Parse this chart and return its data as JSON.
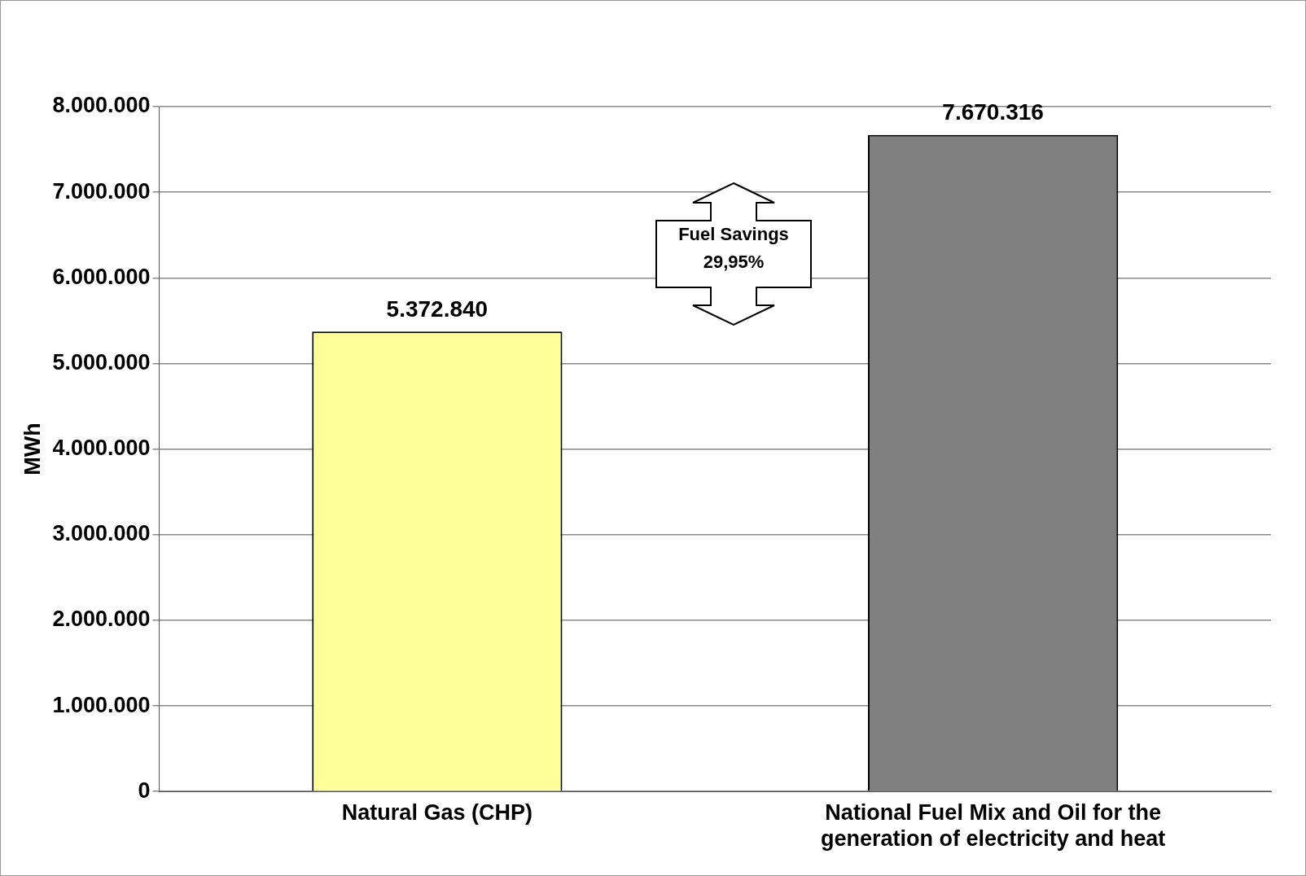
{
  "chart_data": {
    "type": "bar",
    "ylabel": "MWh",
    "categories": [
      "Natural Gas (CHP)",
      "National Fuel Mix and Oil for the generation of electricity and heat"
    ],
    "values": [
      5372840,
      7670316
    ],
    "colors": [
      "#ffff99",
      "#808080"
    ],
    "value_labels": [
      "5.372.840",
      "7.670.316"
    ],
    "ylim": [
      0,
      8000000
    ],
    "yticks": [
      {
        "value": 0,
        "label": "0"
      },
      {
        "value": 1000000,
        "label": "1.000.000"
      },
      {
        "value": 2000000,
        "label": "2.000.000"
      },
      {
        "value": 3000000,
        "label": "3.000.000"
      },
      {
        "value": 4000000,
        "label": "4.000.000"
      },
      {
        "value": 5000000,
        "label": "5.000.000"
      },
      {
        "value": 6000000,
        "label": "6.000.000"
      },
      {
        "value": 7000000,
        "label": "7.000.000"
      },
      {
        "value": 8000000,
        "label": "8.000.000"
      }
    ],
    "grid": "y",
    "legend": false,
    "annotations": [
      "Fuel Savings\n29,95%"
    ]
  }
}
